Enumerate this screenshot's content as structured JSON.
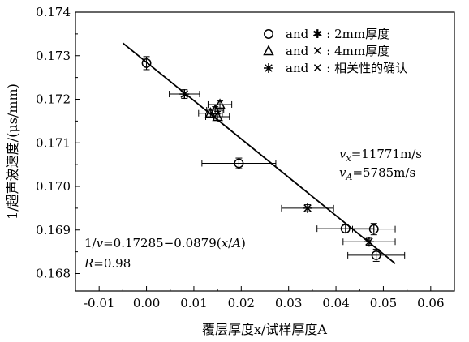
{
  "chart_data": {
    "type": "scatter",
    "xlabel": "覆层厚度x/试样厚度A",
    "ylabel": "1/超声波速度/(μs/mm)",
    "xlim": [
      -0.015,
      0.065
    ],
    "ylim": [
      0.1676,
      0.174
    ],
    "x_ticks": [
      "-0.01",
      "0.00",
      "0.01",
      "0.02",
      "0.03",
      "0.04",
      "0.05",
      "0.06"
    ],
    "y_ticks": [
      "0.168",
      "0.169",
      "0.170",
      "0.171",
      "0.172",
      "0.173",
      "0.174"
    ],
    "legend": {
      "position": "top-right",
      "entries": [
        {
          "marker": "circle",
          "text": "and  ✱ : 2mm厚度"
        },
        {
          "marker": "triangle",
          "text": "and  ✕ : 4mm厚度"
        },
        {
          "marker": "asterisk",
          "text": "and  ✕ : 相关性的确认"
        }
      ]
    },
    "series": [
      {
        "marker": "circle",
        "points": [
          {
            "x": 0.0,
            "y": 0.17283,
            "xerr": 0.0,
            "yerr": 0.00015
          },
          {
            "x": 0.0195,
            "y": 0.17053,
            "xerr": 0.0078,
            "yerr": 0.00012
          },
          {
            "x": 0.042,
            "y": 0.16903,
            "xerr": 0.006,
            "yerr": 0.0001
          },
          {
            "x": 0.048,
            "y": 0.16902,
            "xerr": 0.0045,
            "yerr": 0.00013
          },
          {
            "x": 0.0485,
            "y": 0.16842,
            "xerr": 0.006,
            "yerr": 0.00014
          }
        ]
      },
      {
        "marker": "triangle",
        "points": [
          {
            "x": 0.0135,
            "y": 0.17168,
            "xerr": 0.0025,
            "yerr": 0.0001
          },
          {
            "x": 0.015,
            "y": 0.1716,
            "xerr": 0.0025,
            "yerr": 0.00012
          },
          {
            "x": 0.0155,
            "y": 0.17188,
            "xerr": 0.0025,
            "yerr": 8e-05
          },
          {
            "x": 0.0145,
            "y": 0.17175,
            "xerr": 0.0018,
            "yerr": 8e-05
          }
        ]
      },
      {
        "marker": "asterisk",
        "points": [
          {
            "x": 0.008,
            "y": 0.17212,
            "xerr": 0.0032,
            "yerr": 0.0001
          },
          {
            "x": 0.034,
            "y": 0.1695,
            "xerr": 0.0055,
            "yerr": 8e-05
          },
          {
            "x": 0.047,
            "y": 0.16873,
            "xerr": 0.0055,
            "yerr": 8e-05
          }
        ]
      }
    ],
    "fit_line": {
      "x": [
        -0.005,
        0.0525
      ],
      "y": [
        0.17329,
        0.16823
      ]
    },
    "annotations": {
      "velocity_x": "vx=11771m/s",
      "velocity_a": "vA=5785m/s",
      "equation": "1/v=0.17285−0.0879(x/A)",
      "r_value": "R=0.98"
    }
  }
}
